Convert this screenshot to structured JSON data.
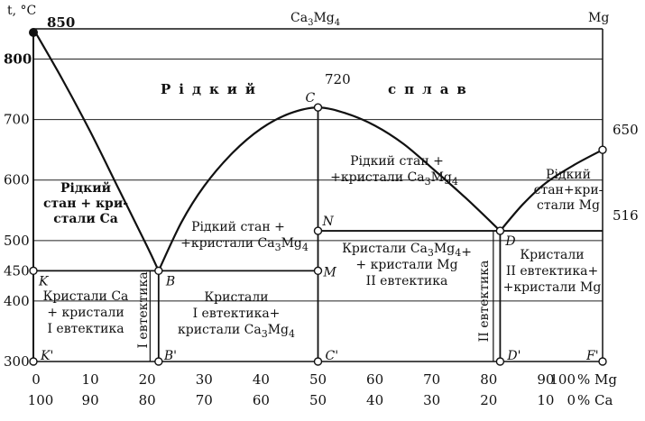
{
  "chart_data": {
    "type": "phase-diagram",
    "title": "Ca3Mg4",
    "ylabel": "t, °C",
    "xlabel_top": "% Mg",
    "xlabel_bottom": "% Ca",
    "component_right": "Mg",
    "xlim": [
      0,
      100
    ],
    "ylim": [
      300,
      850
    ],
    "y_ticks": [
      "300",
      "400",
      "450",
      "500",
      "600",
      "700",
      "800"
    ],
    "x_ticks_mg": [
      "0",
      "10",
      "20",
      "30",
      "40",
      "50",
      "60",
      "70",
      "80",
      "90",
      "100"
    ],
    "x_ticks_ca": [
      "100",
      "90",
      "80",
      "70",
      "60",
      "50",
      "40",
      "30",
      "20",
      "10",
      "0"
    ],
    "percent_mg": "% Mg",
    "percent_ca": "% Ca",
    "points": [
      {
        "name": "A",
        "label": "",
        "x": 0,
        "y": 850
      },
      {
        "name": "B",
        "label": "B",
        "x": 22,
        "y": 450
      },
      {
        "name": "C",
        "label": "C",
        "x": 50,
        "y": 720
      },
      {
        "name": "D",
        "label": "D",
        "x": 82,
        "y": 516
      },
      {
        "name": "E",
        "label": "",
        "x": 100,
        "y": 650
      },
      {
        "name": "K",
        "label": "K",
        "x": 0,
        "y": 450
      },
      {
        "name": "M",
        "label": "M",
        "x": 50,
        "y": 450
      },
      {
        "name": "N",
        "label": "N",
        "x": 50,
        "y": 516
      },
      {
        "name": "K'",
        "label": "K'",
        "x": 0,
        "y": 300
      },
      {
        "name": "B'",
        "label": "B'",
        "x": 22,
        "y": 300
      },
      {
        "name": "C'",
        "label": "C'",
        "x": 50,
        "y": 300
      },
      {
        "name": "D'",
        "label": "D'",
        "x": 82,
        "y": 300
      },
      {
        "name": "F'",
        "label": "F'",
        "x": 100,
        "y": 300
      }
    ],
    "value_labels": {
      "ca_melt": "850",
      "c": "720",
      "mg_melt": "650",
      "eutectic2": "516"
    },
    "liquidus": [
      {
        "x": 0,
        "y": 850
      },
      {
        "x": 5,
        "y": 768
      },
      {
        "x": 10,
        "y": 680
      },
      {
        "x": 15,
        "y": 585
      },
      {
        "x": 20,
        "y": 490
      },
      {
        "x": 22,
        "y": 450
      },
      {
        "x": 26,
        "y": 530
      },
      {
        "x": 30,
        "y": 590
      },
      {
        "x": 35,
        "y": 645
      },
      {
        "x": 40,
        "y": 685
      },
      {
        "x": 45,
        "y": 710
      },
      {
        "x": 50,
        "y": 720
      },
      {
        "x": 55,
        "y": 710
      },
      {
        "x": 60,
        "y": 690
      },
      {
        "x": 65,
        "y": 660
      },
      {
        "x": 70,
        "y": 620
      },
      {
        "x": 76,
        "y": 570
      },
      {
        "x": 82,
        "y": 516
      },
      {
        "x": 86,
        "y": 560
      },
      {
        "x": 90,
        "y": 595
      },
      {
        "x": 95,
        "y": 625
      },
      {
        "x": 100,
        "y": 650
      }
    ],
    "region_labels": {
      "liquid": "Рідкий сплав",
      "liquid_ca": [
        "Рідкий",
        "стан + кри-",
        "стали Са"
      ],
      "liquid_ca3mg4_left": [
        "Рідкий стан +",
        "+кристали Ca3Mg4"
      ],
      "liquid_ca3mg4_right": [
        "Рідкий стан +",
        "+кристали Ca3Mg4"
      ],
      "liquid_mg": [
        "Рідкий",
        "стан+кри-",
        "стали Mg"
      ],
      "solid_ca": [
        "Кристали Са",
        "+ кристали",
        "І евтектика"
      ],
      "solid_ca3mg4_e1": [
        "Кристали",
        "І евтектика+",
        "кристали Ca3Mg4"
      ],
      "solid_ca3mg4_mg": [
        "Кристали Ca3Mg4+",
        "+ кристали Mg",
        "ІІ евтектика"
      ],
      "solid_mg": [
        "Кристали",
        "ІІ евтектика+",
        "+кристали Mg"
      ],
      "eutectic1_vertical": "І евтектика",
      "eutectic2_vertical": "ІІ евтектика"
    }
  }
}
